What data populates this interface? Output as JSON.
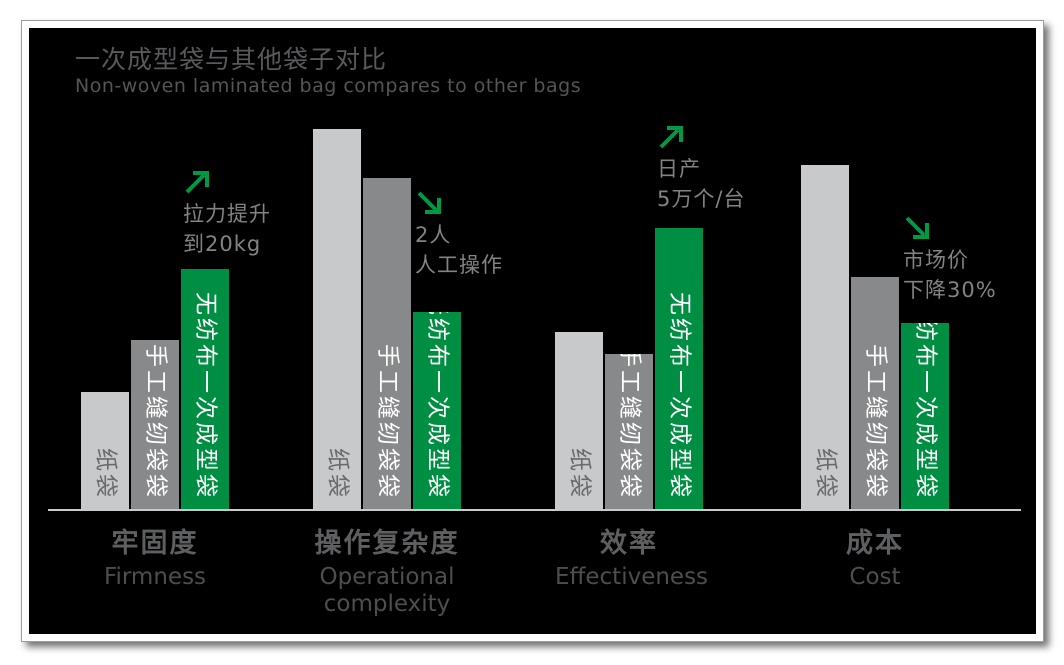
{
  "chart_data": {
    "type": "bar",
    "grouping": "grouped",
    "title": "一次成型袋与其他袋子对比",
    "subtitle": "Non-woven laminated bag compares to other bags",
    "categories": [
      {
        "zh": "牢固度",
        "en": "Firmness"
      },
      {
        "zh": "操作复杂度",
        "en": "Operational complexity"
      },
      {
        "zh": "效率",
        "en": "Effectiveness"
      },
      {
        "zh": "成本",
        "en": "Cost"
      }
    ],
    "series": [
      {
        "name": "纸袋",
        "color_key": "bar_paper",
        "values": [
          117,
          380,
          177,
          344
        ]
      },
      {
        "name": "手工缝纫袋袋",
        "color_key": "bar_handsewn",
        "values": [
          169,
          331,
          155,
          232
        ]
      },
      {
        "name": "无纺布一次成型袋",
        "color_key": "bar_nonwoven",
        "values": [
          240,
          197,
          281,
          186
        ]
      }
    ],
    "value_note": "no numeric axis shown; values are relative bar heights estimated in pixels",
    "ylim": [
      0,
      481
    ],
    "legend": "series names printed vertically inside each bar",
    "annotations": [
      {
        "category": "牢固度",
        "trend": "up",
        "lines": [
          "拉力提升",
          "到20kg"
        ]
      },
      {
        "category": "操作复杂度",
        "trend": "down",
        "lines": [
          "2人",
          "人工操作"
        ]
      },
      {
        "category": "效率",
        "trend": "up",
        "lines": [
          "日产",
          "5万个/台"
        ]
      },
      {
        "category": "成本",
        "trend": "down",
        "lines": [
          "市场价",
          "下降30%"
        ]
      }
    ]
  },
  "colors": {
    "canvas_background": "#000000",
    "frame_background": "#ffffff",
    "bar_paper": "#c8c9ca",
    "bar_handsewn": "#88898b",
    "bar_nonwoven": "#008f42",
    "arrow_green": "#009a45",
    "title_text": "#58595b",
    "subtitle_text": "#545557",
    "annotation_text": "#828385",
    "category_zh_text": "#5e5f61",
    "category_en_text": "#4d4e50",
    "axis_line": "#c9cacb",
    "bar_label_on_light": "#696a6c",
    "bar_label_on_dark": "#ffffff"
  }
}
